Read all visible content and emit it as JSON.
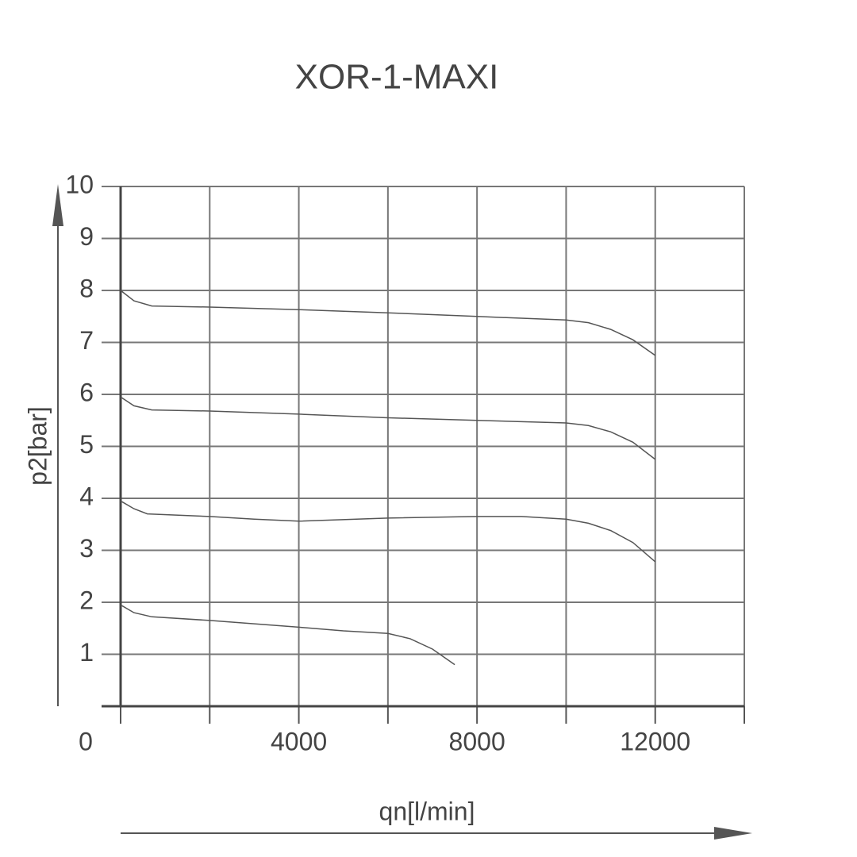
{
  "chart_data": {
    "type": "line",
    "title": "XOR-1-MAXI",
    "x_label": "qn[l/min]",
    "y_label": "p2[bar]",
    "xlim": [
      0,
      14000
    ],
    "ylim": [
      0,
      10
    ],
    "xticks": [
      0,
      4000,
      8000,
      12000
    ],
    "minor_xticks": [
      2000,
      6000,
      10000,
      14000
    ],
    "yticks": [
      1,
      2,
      3,
      4,
      5,
      6,
      7,
      8,
      9,
      10
    ],
    "grid": true,
    "series": [
      {
        "color": "#555555",
        "x": [
          0,
          300,
          700,
          2000,
          4000,
          6000,
          8000,
          10000,
          10500,
          11000,
          11500,
          12000
        ],
        "values": [
          8.0,
          7.8,
          7.7,
          7.68,
          7.63,
          7.57,
          7.5,
          7.43,
          7.38,
          7.25,
          7.05,
          6.75
        ]
      },
      {
        "color": "#555555",
        "x": [
          0,
          300,
          700,
          2000,
          4000,
          6000,
          8000,
          10000,
          10500,
          11000,
          11500,
          12000
        ],
        "values": [
          5.95,
          5.78,
          5.7,
          5.68,
          5.62,
          5.55,
          5.5,
          5.45,
          5.4,
          5.28,
          5.08,
          4.75
        ]
      },
      {
        "color": "#555555",
        "x": [
          0,
          300,
          600,
          2000,
          3000,
          4000,
          6000,
          8000,
          9000,
          10000,
          10500,
          11000,
          11500,
          12000
        ],
        "values": [
          3.95,
          3.8,
          3.7,
          3.65,
          3.6,
          3.56,
          3.62,
          3.65,
          3.65,
          3.6,
          3.52,
          3.38,
          3.15,
          2.78
        ]
      },
      {
        "color": "#555555",
        "x": [
          0,
          300,
          700,
          2000,
          4000,
          5000,
          6000,
          6500,
          7000,
          7500
        ],
        "values": [
          1.95,
          1.8,
          1.72,
          1.65,
          1.52,
          1.45,
          1.4,
          1.3,
          1.1,
          0.8
        ]
      }
    ]
  }
}
